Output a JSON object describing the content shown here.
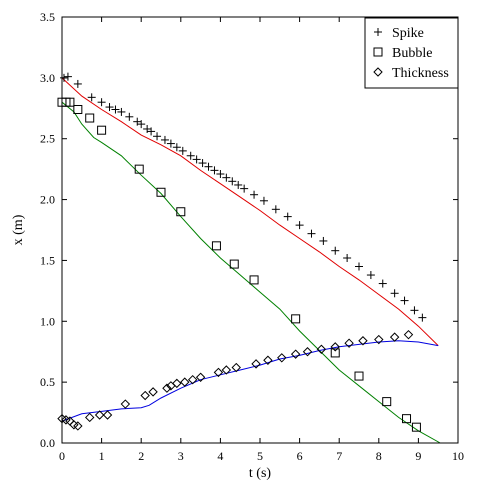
{
  "chart_data": {
    "type": "scatter",
    "title": "",
    "xlabel": "t (s)",
    "ylabel": "x (m)",
    "xlim": [
      0,
      10
    ],
    "ylim": [
      0,
      3.5
    ],
    "x_ticks": [
      "0",
      "1",
      "2",
      "3",
      "4",
      "5",
      "6",
      "7",
      "8",
      "9",
      "10"
    ],
    "y_ticks": [
      "0.0",
      "0.5",
      "1.0",
      "1.5",
      "2.0",
      "2.5",
      "3.0",
      "3.5"
    ],
    "grid": false,
    "legend_position": "top-right",
    "series": [
      {
        "name": "Spike",
        "marker": "plus",
        "points": [
          [
            0.05,
            3.0
          ],
          [
            0.15,
            3.01
          ],
          [
            0.4,
            2.95
          ],
          [
            0.75,
            2.84
          ],
          [
            1.0,
            2.8
          ],
          [
            1.2,
            2.76
          ],
          [
            1.35,
            2.74
          ],
          [
            1.5,
            2.72
          ],
          [
            1.7,
            2.68
          ],
          [
            1.9,
            2.64
          ],
          [
            2.0,
            2.62
          ],
          [
            2.15,
            2.58
          ],
          [
            2.25,
            2.56
          ],
          [
            2.4,
            2.52
          ],
          [
            2.6,
            2.49
          ],
          [
            2.75,
            2.46
          ],
          [
            2.9,
            2.43
          ],
          [
            3.05,
            2.4
          ],
          [
            3.25,
            2.36
          ],
          [
            3.4,
            2.33
          ],
          [
            3.55,
            2.3
          ],
          [
            3.7,
            2.27
          ],
          [
            3.85,
            2.24
          ],
          [
            4.0,
            2.21
          ],
          [
            4.15,
            2.18
          ],
          [
            4.3,
            2.15
          ],
          [
            4.45,
            2.12
          ],
          [
            4.6,
            2.09
          ],
          [
            4.85,
            2.04
          ],
          [
            5.1,
            1.99
          ],
          [
            5.4,
            1.92
          ],
          [
            5.7,
            1.86
          ],
          [
            6.0,
            1.79
          ],
          [
            6.3,
            1.72
          ],
          [
            6.6,
            1.66
          ],
          [
            6.9,
            1.58
          ],
          [
            7.2,
            1.52
          ],
          [
            7.5,
            1.45
          ],
          [
            7.8,
            1.38
          ],
          [
            8.1,
            1.31
          ],
          [
            8.4,
            1.23
          ],
          [
            8.65,
            1.17
          ],
          [
            8.9,
            1.09
          ],
          [
            9.1,
            1.03
          ]
        ]
      },
      {
        "name": "Bubble",
        "marker": "square",
        "points": [
          [
            0.0,
            2.8
          ],
          [
            0.1,
            2.8
          ],
          [
            0.2,
            2.8
          ],
          [
            0.4,
            2.74
          ],
          [
            0.7,
            2.67
          ],
          [
            1.0,
            2.57
          ],
          [
            1.95,
            2.25
          ],
          [
            2.5,
            2.06
          ],
          [
            3.0,
            1.9
          ],
          [
            3.9,
            1.62
          ],
          [
            4.35,
            1.47
          ],
          [
            4.85,
            1.34
          ],
          [
            5.9,
            1.02
          ],
          [
            6.9,
            0.74
          ],
          [
            7.5,
            0.55
          ],
          [
            8.2,
            0.34
          ],
          [
            8.7,
            0.2
          ],
          [
            8.95,
            0.13
          ]
        ]
      },
      {
        "name": "Thickness",
        "marker": "diamond",
        "points": [
          [
            0.0,
            0.2
          ],
          [
            0.1,
            0.19
          ],
          [
            0.2,
            0.18
          ],
          [
            0.3,
            0.15
          ],
          [
            0.4,
            0.14
          ],
          [
            0.7,
            0.21
          ],
          [
            0.95,
            0.23
          ],
          [
            1.15,
            0.23
          ],
          [
            1.6,
            0.32
          ],
          [
            2.1,
            0.39
          ],
          [
            2.3,
            0.42
          ],
          [
            2.65,
            0.45
          ],
          [
            2.75,
            0.47
          ],
          [
            2.9,
            0.49
          ],
          [
            3.1,
            0.5
          ],
          [
            3.3,
            0.52
          ],
          [
            3.5,
            0.54
          ],
          [
            3.95,
            0.58
          ],
          [
            4.15,
            0.6
          ],
          [
            4.4,
            0.62
          ],
          [
            4.9,
            0.65
          ],
          [
            5.2,
            0.68
          ],
          [
            5.55,
            0.7
          ],
          [
            5.9,
            0.73
          ],
          [
            6.2,
            0.75
          ],
          [
            6.55,
            0.77
          ],
          [
            6.9,
            0.79
          ],
          [
            7.25,
            0.82
          ],
          [
            7.6,
            0.84
          ],
          [
            8.0,
            0.85
          ],
          [
            8.4,
            0.87
          ],
          [
            8.75,
            0.89
          ]
        ]
      }
    ],
    "lines": [
      {
        "color": "#e00000",
        "points": [
          [
            0.0,
            3.0
          ],
          [
            0.5,
            2.85
          ],
          [
            1.0,
            2.74
          ],
          [
            1.5,
            2.64
          ],
          [
            2.0,
            2.53
          ],
          [
            2.5,
            2.45
          ],
          [
            3.0,
            2.36
          ],
          [
            3.5,
            2.24
          ],
          [
            4.0,
            2.13
          ],
          [
            4.5,
            2.02
          ],
          [
            5.0,
            1.91
          ],
          [
            5.5,
            1.79
          ],
          [
            6.0,
            1.68
          ],
          [
            6.5,
            1.57
          ],
          [
            7.0,
            1.45
          ],
          [
            7.5,
            1.34
          ],
          [
            8.0,
            1.22
          ],
          [
            8.5,
            1.1
          ],
          [
            9.0,
            0.96
          ],
          [
            9.5,
            0.8
          ]
        ]
      },
      {
        "color": "#008000",
        "points": [
          [
            0.0,
            2.8
          ],
          [
            0.3,
            2.72
          ],
          [
            0.5,
            2.62
          ],
          [
            0.8,
            2.51
          ],
          [
            1.0,
            2.47
          ],
          [
            1.5,
            2.36
          ],
          [
            2.0,
            2.2
          ],
          [
            2.5,
            2.05
          ],
          [
            3.0,
            1.86
          ],
          [
            3.5,
            1.68
          ],
          [
            4.0,
            1.52
          ],
          [
            4.5,
            1.38
          ],
          [
            5.0,
            1.24
          ],
          [
            5.5,
            1.1
          ],
          [
            6.0,
            0.92
          ],
          [
            6.5,
            0.76
          ],
          [
            7.0,
            0.6
          ],
          [
            7.5,
            0.47
          ],
          [
            8.0,
            0.34
          ],
          [
            8.5,
            0.21
          ],
          [
            9.0,
            0.1
          ],
          [
            9.55,
            0.0
          ]
        ]
      },
      {
        "color": "#0000e0",
        "points": [
          [
            0.0,
            0.18
          ],
          [
            0.5,
            0.24
          ],
          [
            1.0,
            0.26
          ],
          [
            1.5,
            0.28
          ],
          [
            2.0,
            0.29
          ],
          [
            2.2,
            0.31
          ],
          [
            2.5,
            0.37
          ],
          [
            3.0,
            0.45
          ],
          [
            3.5,
            0.52
          ],
          [
            4.0,
            0.56
          ],
          [
            4.5,
            0.6
          ],
          [
            5.0,
            0.64
          ],
          [
            5.5,
            0.69
          ],
          [
            6.0,
            0.72
          ],
          [
            6.5,
            0.76
          ],
          [
            7.0,
            0.79
          ],
          [
            7.5,
            0.81
          ],
          [
            8.0,
            0.83
          ],
          [
            8.5,
            0.84
          ],
          [
            9.0,
            0.83
          ],
          [
            9.5,
            0.8
          ]
        ]
      }
    ]
  }
}
